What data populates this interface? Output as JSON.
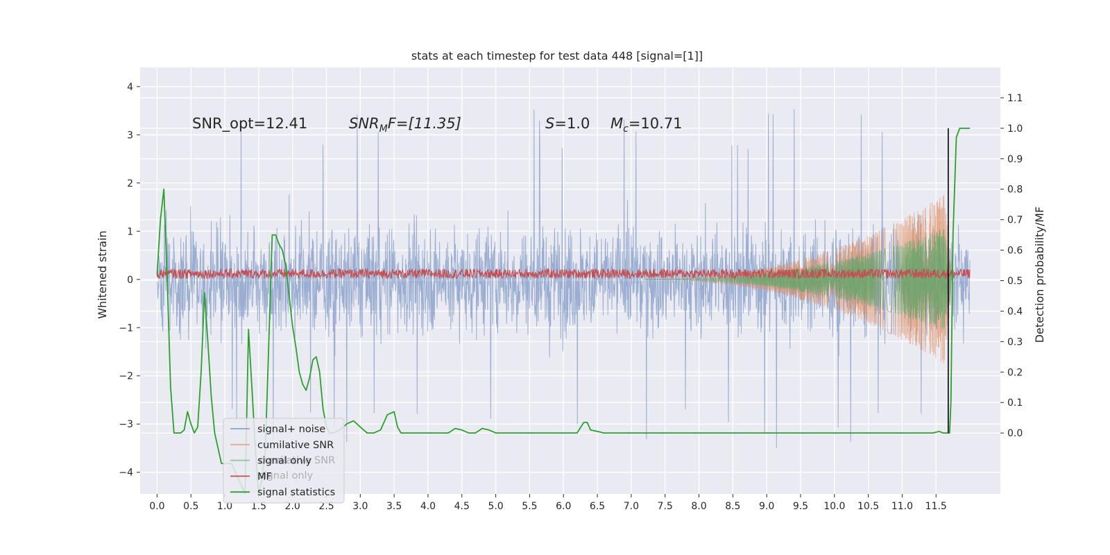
{
  "chart_data": {
    "type": "line",
    "title": "stats at each timestep for test data 448 [signal=[1]]",
    "ylabel_left": "Whitened strain",
    "ylabel_right": "Detection probability/MF",
    "xlim": [
      -0.25,
      12.45
    ],
    "ylim_left": [
      -4.45,
      4.4
    ],
    "ylim_right": [
      -0.2,
      1.2
    ],
    "x_ticks": [
      "0.0",
      "0.5",
      "1.0",
      "1.5",
      "2.0",
      "2.5",
      "3.0",
      "3.5",
      "4.0",
      "4.5",
      "5.0",
      "5.5",
      "6.0",
      "6.5",
      "7.0",
      "7.5",
      "8.0",
      "8.5",
      "9.0",
      "9.5",
      "10.0",
      "10.5",
      "11.0",
      "11.5"
    ],
    "y_ticks_left": [
      "4",
      "3",
      "2",
      "1",
      "0",
      "−1",
      "−2",
      "−3",
      "−4"
    ],
    "y_ticks_right": [
      "1.1",
      "1.0",
      "0.9",
      "0.8",
      "0.7",
      "0.6",
      "0.5",
      "0.4",
      "0.3",
      "0.2",
      "0.1",
      "0.0"
    ],
    "grid": true,
    "annotations": {
      "snr_opt": "SNR_opt=12.41",
      "snr_mf": "SNR",
      "snr_mf_sub": "M",
      "snr_mf_rest": "F=[11.35]",
      "s_label": "S",
      "s_value": "=1.0",
      "mc_label": "M",
      "mc_sub": "c",
      "mc_value": "=10.71"
    },
    "legend": {
      "placement": "lower-left",
      "items": [
        {
          "label": "signal+ noise",
          "color": "#4c72b0"
        },
        {
          "label": "cumilative SNR",
          "color": "#dd8452"
        },
        {
          "label": "signal only",
          "color": "#55a868"
        },
        {
          "label": "MF",
          "color": "#c44e52"
        },
        {
          "label": "signal statistics",
          "color": "#2ca02c"
        }
      ],
      "ghost_items": [
        "cumilative SNR",
        "signal only"
      ]
    },
    "colors": {
      "background": "#eaeaf2",
      "noise": "#4c72b0",
      "cumulative_snr": "#dd8452",
      "signal_only": "#55a868",
      "mf": "#c44e52",
      "statistics": "#2ca02c",
      "merger_line": "#000000"
    },
    "series": [
      {
        "name": "signal+ noise",
        "axis": "left",
        "x_range": [
          0.0,
          12.0
        ],
        "typical_abs": 1.25,
        "max": 4.0,
        "min": -4.1
      },
      {
        "name": "signal only",
        "axis": "left",
        "x_range": [
          7.2,
          11.75
        ],
        "envelope_peak_x": 11.62,
        "envelope_peak": 1.75
      },
      {
        "name": "cumilative SNR",
        "axis": "left",
        "x_range": [
          7.2,
          11.75
        ],
        "envelope_peak_x": 11.62,
        "envelope_peak": 1.75
      },
      {
        "name": "MF",
        "axis": "left",
        "x_range": [
          0.0,
          12.0
        ],
        "baseline": 0.12,
        "amplitude": 0.1
      },
      {
        "name": "signal statistics",
        "axis": "right",
        "x": [
          0.0,
          0.05,
          0.1,
          0.15,
          0.2,
          0.25,
          0.3,
          0.35,
          0.4,
          0.45,
          0.5,
          0.55,
          0.6,
          0.65,
          0.7,
          0.75,
          0.8,
          0.85,
          0.9,
          0.95,
          1.0,
          1.1,
          1.2,
          1.3,
          1.35,
          1.4,
          1.45,
          1.5,
          1.55,
          1.6,
          1.65,
          1.7,
          1.75,
          1.8,
          1.85,
          1.9,
          1.95,
          2.0,
          2.05,
          2.1,
          2.15,
          2.2,
          2.25,
          2.3,
          2.35,
          2.4,
          2.45,
          2.5,
          2.55,
          2.6,
          2.7,
          2.8,
          2.9,
          3.0,
          3.1,
          3.2,
          3.3,
          3.4,
          3.5,
          3.55,
          3.6,
          3.65,
          3.7,
          3.8,
          4.0,
          4.2,
          4.3,
          4.4,
          4.5,
          4.6,
          4.7,
          4.8,
          4.9,
          5.0,
          5.2,
          5.5,
          5.8,
          6.0,
          6.2,
          6.3,
          6.35,
          6.4,
          6.5,
          6.6,
          6.8,
          7.0,
          7.5,
          8.0,
          8.5,
          9.0,
          9.5,
          10.0,
          10.5,
          11.0,
          11.3,
          11.45,
          11.55,
          11.6,
          11.65,
          11.7,
          11.72,
          11.75,
          11.8,
          11.85,
          11.9,
          11.95,
          12.0
        ],
        "y": [
          0.52,
          0.7,
          0.8,
          0.5,
          0.15,
          0.0,
          0.0,
          0.0,
          0.01,
          0.07,
          0.03,
          0.0,
          0.02,
          0.2,
          0.46,
          0.3,
          0.12,
          0.0,
          -0.05,
          -0.1,
          -0.1,
          -0.1,
          -0.15,
          -0.2,
          0.34,
          0.15,
          -0.05,
          -0.2,
          -0.15,
          -0.05,
          0.3,
          0.65,
          0.65,
          0.62,
          0.6,
          0.55,
          0.45,
          0.35,
          0.28,
          0.2,
          0.16,
          0.14,
          0.18,
          0.24,
          0.25,
          0.2,
          0.08,
          0.02,
          0.0,
          0.0,
          0.01,
          0.03,
          0.04,
          0.02,
          0.0,
          0.0,
          0.01,
          0.06,
          0.07,
          0.02,
          0.0,
          0.0,
          0.0,
          0.0,
          0.0,
          0.0,
          0.0,
          0.015,
          0.01,
          0.0,
          0.0,
          0.015,
          0.01,
          0.0,
          0.0,
          0.0,
          0.0,
          0.0,
          0.0,
          0.035,
          0.035,
          0.01,
          0.005,
          0.0,
          0.0,
          0.0,
          0.0,
          0.0,
          0.0,
          0.0,
          0.0,
          0.0,
          0.0,
          0.0,
          0.0,
          0.0,
          0.005,
          0.0,
          0.0,
          0.0,
          0.1,
          0.65,
          0.97,
          1.0,
          1.0,
          1.0,
          1.0
        ]
      }
    ],
    "merger_x": 11.68
  }
}
